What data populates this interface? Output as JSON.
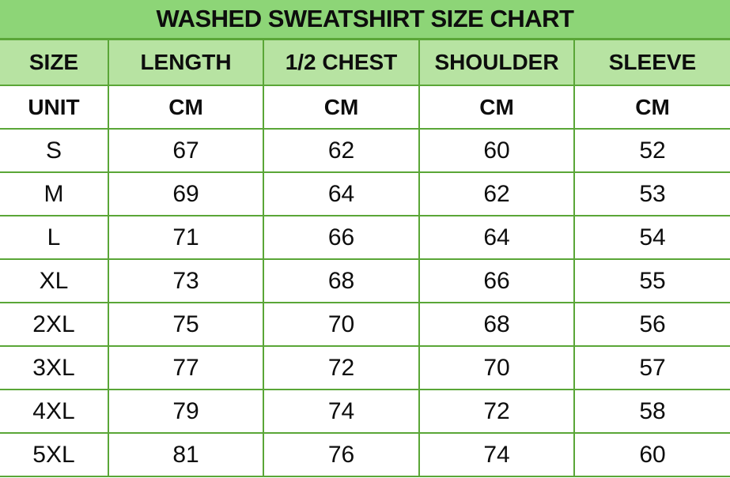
{
  "title": "WASHED SWEATSHIRT SIZE CHART",
  "colors": {
    "title_bg": "#8DD577",
    "header_bg": "#B7E3A2",
    "border_green": "#5AA637",
    "row_bg": "#FFFFFF",
    "text": "#0D0D0D"
  },
  "chart_data": {
    "type": "table",
    "title": "WASHED SWEATSHIRT SIZE CHART",
    "columns": [
      "SIZE",
      "LENGTH",
      "1/2 CHEST",
      "SHOULDER",
      "SLEEVE"
    ],
    "unit_row": [
      "UNIT",
      "CM",
      "CM",
      "CM",
      "CM"
    ],
    "rows": [
      [
        "S",
        "67",
        "62",
        "60",
        "52"
      ],
      [
        "M",
        "69",
        "64",
        "62",
        "53"
      ],
      [
        "L",
        "71",
        "66",
        "64",
        "54"
      ],
      [
        "XL",
        "73",
        "68",
        "66",
        "55"
      ],
      [
        "2XL",
        "75",
        "70",
        "68",
        "56"
      ],
      [
        "3XL",
        "77",
        "72",
        "70",
        "57"
      ],
      [
        "4XL",
        "79",
        "74",
        "72",
        "58"
      ],
      [
        "5XL",
        "81",
        "76",
        "74",
        "60"
      ]
    ],
    "layout": {
      "grid": true,
      "header_fill": true,
      "units": "CM"
    }
  }
}
